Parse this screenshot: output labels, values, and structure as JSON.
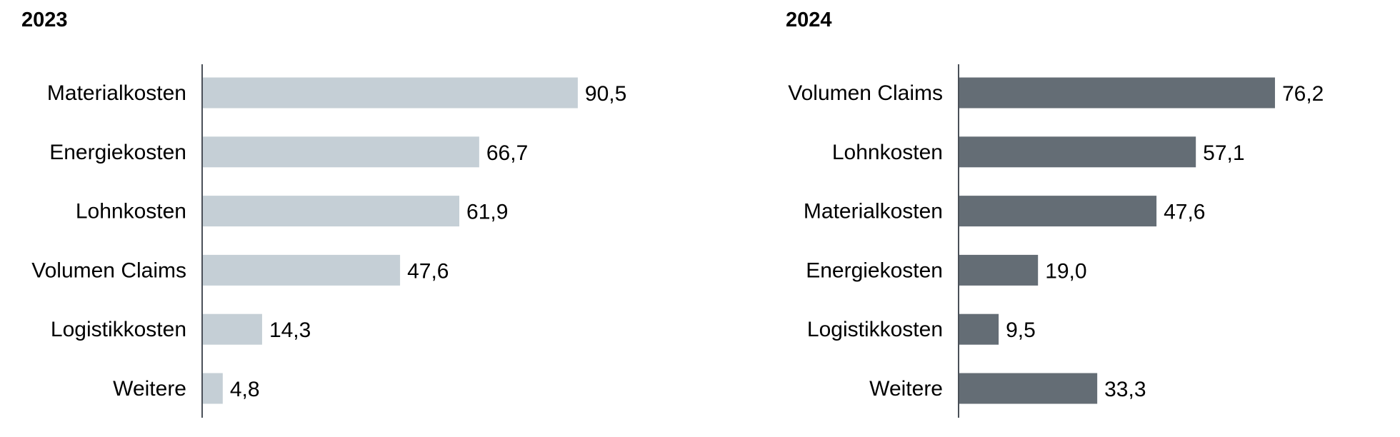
{
  "chart_data": [
    {
      "type": "bar",
      "orientation": "horizontal",
      "title": "2023",
      "categories": [
        "Materialkosten",
        "Energiekosten",
        "Lohnkosten",
        "Volumen Claims",
        "Logistikkosten",
        "Weitere"
      ],
      "values": [
        90.5,
        66.7,
        61.9,
        47.6,
        14.3,
        4.8
      ],
      "value_labels": [
        "90,5",
        "66,7",
        "61,9",
        "47,6",
        "14,3",
        "4,8"
      ],
      "color": "#c5cfd6",
      "xlim": [
        0,
        100
      ],
      "grid": false
    },
    {
      "type": "bar",
      "orientation": "horizontal",
      "title": "2024",
      "categories": [
        "Volumen Claims",
        "Lohnkosten",
        "Materialkosten",
        "Energiekosten",
        "Logistikkosten",
        "Weitere"
      ],
      "values": [
        76.2,
        57.1,
        47.6,
        19.0,
        9.5,
        33.3
      ],
      "value_labels": [
        "76,2",
        "57,1",
        "47,6",
        "19,0",
        "9,5",
        "33,3"
      ],
      "color": "#646d75",
      "xlim": [
        0,
        100
      ],
      "grid": false
    }
  ]
}
